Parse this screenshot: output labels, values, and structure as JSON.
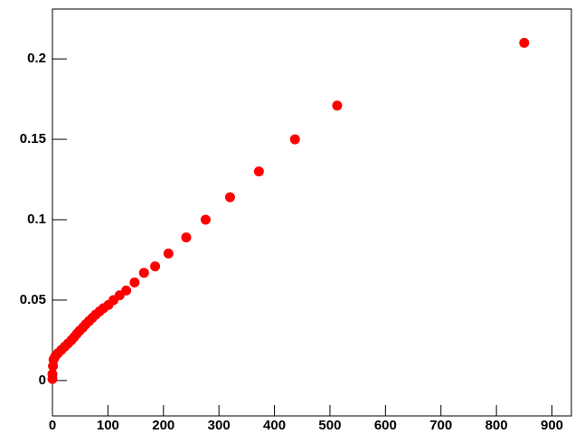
{
  "chart_data": {
    "type": "scatter",
    "color": "#ff0000",
    "x": [
      850,
      513,
      437,
      372,
      320,
      276,
      241,
      209,
      185,
      165,
      148,
      133,
      121,
      110,
      101,
      92,
      85,
      78,
      72,
      66,
      60,
      55,
      49,
      44,
      39,
      34,
      28,
      22,
      16,
      10,
      5,
      2,
      1,
      0,
      0
    ],
    "values": [
      0.21,
      0.171,
      0.15,
      0.13,
      0.114,
      0.1,
      0.089,
      0.079,
      0.071,
      0.067,
      0.061,
      0.056,
      0.053,
      0.05,
      0.047,
      0.045,
      0.043,
      0.041,
      0.039,
      0.037,
      0.035,
      0.033,
      0.031,
      0.029,
      0.027,
      0.025,
      0.023,
      0.021,
      0.019,
      0.017,
      0.015,
      0.013,
      0.009,
      0.004,
      0.001
    ],
    "xlim": [
      0,
      935
    ],
    "ylim": [
      -0.022,
      0.231
    ],
    "xticks": [
      0,
      100,
      200,
      300,
      400,
      500,
      600,
      700,
      800,
      900
    ],
    "yticks": [
      0,
      0.05,
      0.1,
      0.15,
      0.2
    ]
  }
}
